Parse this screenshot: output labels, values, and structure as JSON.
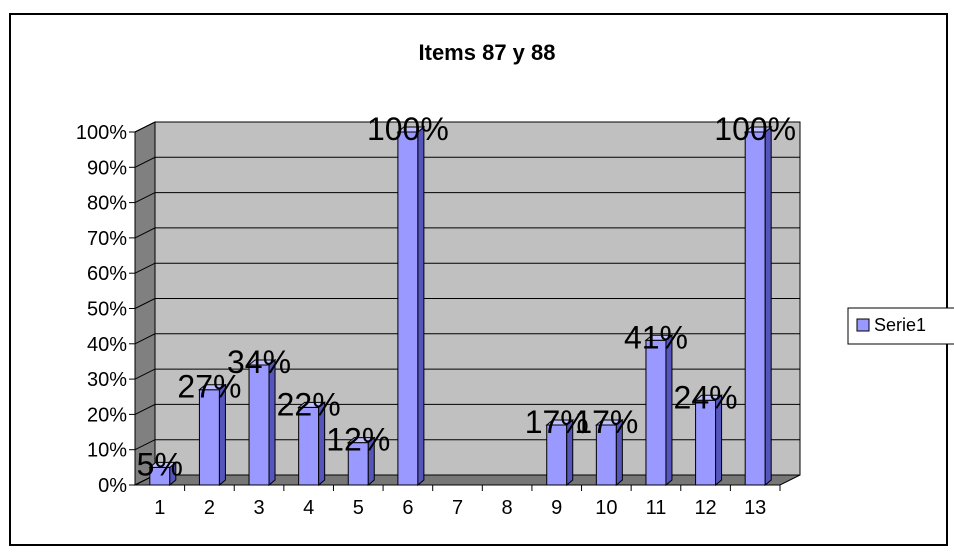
{
  "chart_data": {
    "type": "bar",
    "title": "Items 87 y 88",
    "categories": [
      "1",
      "2",
      "3",
      "4",
      "5",
      "6",
      "7",
      "8",
      "9",
      "10",
      "11",
      "12",
      "13"
    ],
    "series": [
      {
        "name": "Serie1",
        "values": [
          5,
          27,
          34,
          22,
          12,
          100,
          null,
          null,
          17,
          17,
          41,
          24,
          100
        ],
        "labels": [
          "5%",
          "27%",
          "34%",
          "22%",
          "12%",
          "100%",
          "",
          "",
          "17%",
          "17%",
          "41%",
          "24%",
          "100%"
        ]
      }
    ],
    "y_ticks": [
      "0%",
      "10%",
      "20%",
      "30%",
      "40%",
      "50%",
      "60%",
      "70%",
      "80%",
      "90%",
      "100%"
    ],
    "ylim": [
      0,
      100
    ],
    "xlabel": "",
    "ylabel": "",
    "grid": true,
    "legend_position": "right",
    "colors": {
      "bar_front": "#9999ff",
      "bar_side": "#5555bb",
      "bar_top": "#c0c0ff",
      "plot_wall": "#c0c0c0",
      "floor": "#808080"
    }
  }
}
